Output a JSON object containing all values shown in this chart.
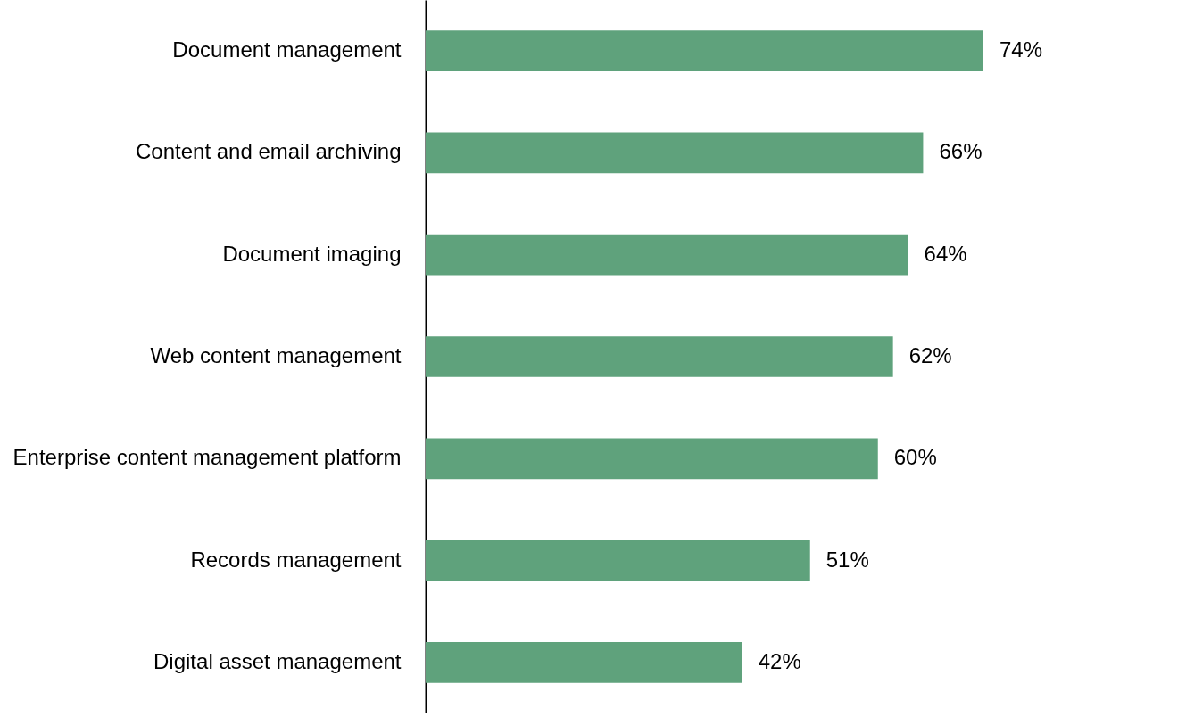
{
  "chart_data": {
    "type": "bar",
    "orientation": "horizontal",
    "categories": [
      "Document management",
      "Content and email archiving",
      "Document imaging",
      "Web content management",
      "Enterprise content management platform",
      "Records management",
      "Digital asset management"
    ],
    "values": [
      74,
      66,
      64,
      62,
      60,
      51,
      42
    ],
    "value_labels": [
      "74%",
      "66%",
      "64%",
      "62%",
      "60%",
      "51%",
      "42%"
    ],
    "color": "#5fa27c"
  }
}
